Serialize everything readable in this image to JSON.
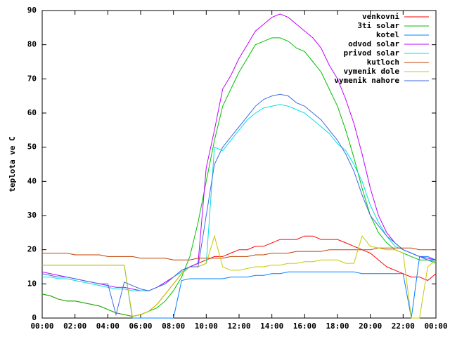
{
  "chart_data": {
    "type": "line",
    "y_label": "teplota ve C",
    "x": [
      0,
      0.5,
      1,
      1.5,
      2,
      2.5,
      3,
      3.5,
      4,
      4.5,
      5,
      5.5,
      6,
      6.5,
      7,
      7.5,
      8,
      8.5,
      9,
      9.5,
      10,
      10.5,
      11,
      11.5,
      12,
      12.5,
      13,
      13.5,
      14,
      14.5,
      15,
      15.5,
      16,
      16.5,
      17,
      17.5,
      18,
      18.5,
      19,
      19.5,
      20,
      20.5,
      21,
      21.5,
      22,
      22.5,
      23,
      23.5,
      24
    ],
    "xlim": [
      0,
      24
    ],
    "xticks": [
      {
        "value": 0,
        "label": "00:00"
      },
      {
        "value": 2,
        "label": "02:00"
      },
      {
        "value": 4,
        "label": "04:00"
      },
      {
        "value": 6,
        "label": "06:00"
      },
      {
        "value": 8,
        "label": "08:00"
      },
      {
        "value": 10,
        "label": "10:00"
      },
      {
        "value": 12,
        "label": "12:00"
      },
      {
        "value": 14,
        "label": "14:00"
      },
      {
        "value": 16,
        "label": "16:00"
      },
      {
        "value": 18,
        "label": "18:00"
      },
      {
        "value": 20,
        "label": "20:00"
      },
      {
        "value": 22,
        "label": "22:00"
      },
      {
        "value": 24,
        "label": "00:00"
      }
    ],
    "ylim": [
      0,
      90
    ],
    "yticks": [
      0,
      10,
      20,
      30,
      40,
      50,
      60,
      70,
      80,
      90
    ],
    "legend": "top-right",
    "series": [
      {
        "name": "venkovni",
        "color": "#ff0000",
        "values": [
          7,
          6.5,
          5.5,
          5,
          5,
          4.5,
          4,
          3.5,
          2.5,
          1.5,
          1,
          0.5,
          1,
          2,
          4,
          7,
          10,
          13,
          15,
          16,
          17,
          18,
          18,
          19,
          20,
          20,
          21,
          21,
          22,
          23,
          23,
          23,
          24,
          24,
          23,
          23,
          23,
          22,
          21,
          20,
          19,
          17,
          15,
          14,
          13,
          12,
          12,
          11,
          13
        ]
      },
      {
        "name": "3ti solar",
        "color": "#00c000",
        "values": [
          7,
          6.5,
          5.5,
          5,
          5,
          4.5,
          4,
          3.5,
          2.5,
          1.5,
          1,
          0.5,
          1,
          2,
          3,
          5,
          8,
          12,
          18,
          28,
          40,
          52,
          62,
          67,
          72,
          76,
          80,
          81,
          82,
          82,
          81,
          79,
          78,
          75,
          72,
          67,
          62,
          55,
          47,
          38,
          30,
          25,
          22,
          20,
          19,
          18,
          17,
          17,
          16
        ]
      },
      {
        "name": "kotel",
        "color": "#0080ff",
        "values": [
          15.5,
          15.5,
          15.5,
          15.5,
          15.5,
          15.5,
          15.5,
          15.5,
          15.5,
          15.5,
          15.5,
          0,
          0,
          0,
          0,
          0,
          0,
          11,
          11.5,
          11.5,
          11.5,
          11.5,
          11.5,
          12,
          12,
          12,
          12.5,
          12.5,
          13,
          13,
          13.5,
          13.5,
          13.5,
          13.5,
          13.5,
          13.5,
          13.5,
          13.5,
          13.5,
          13,
          13,
          13,
          13,
          13,
          13,
          0,
          18,
          18,
          17
        ]
      },
      {
        "name": "odvod solar",
        "color": "#c000ff",
        "values": [
          13.5,
          13,
          12.5,
          12,
          11.5,
          11,
          10.5,
          10,
          9.5,
          9,
          9,
          8.5,
          8,
          8,
          9,
          10.5,
          12,
          14,
          15,
          16,
          44,
          55,
          67,
          71,
          76,
          80,
          84,
          86,
          88,
          89,
          88,
          86,
          84,
          82,
          79,
          74,
          70,
          64,
          57,
          48,
          38,
          30,
          25,
          22,
          20,
          19,
          18,
          17.5,
          17
        ]
      },
      {
        "name": "privod solar",
        "color": "#00e0e0",
        "values": [
          12,
          12,
          11.5,
          11.5,
          11,
          10.5,
          10,
          9.5,
          9,
          8.5,
          8.5,
          8,
          8,
          8,
          9,
          10,
          12,
          13.5,
          15,
          15,
          16,
          50,
          49,
          52,
          55,
          58,
          60,
          61.5,
          62,
          62.5,
          62,
          61,
          60,
          58,
          56,
          54,
          51,
          49,
          45,
          40,
          33,
          28,
          24,
          21,
          20,
          19,
          18,
          17,
          16.5
        ]
      },
      {
        "name": "kutloch",
        "color": "#c04000",
        "values": [
          19,
          19,
          19,
          19,
          18.5,
          18.5,
          18.5,
          18.5,
          18,
          18,
          18,
          18,
          17.5,
          17.5,
          17.5,
          17.5,
          17,
          17,
          17,
          17.5,
          17.5,
          17.5,
          17.5,
          18,
          18,
          18,
          18.5,
          18.5,
          19,
          19,
          19,
          19.5,
          19.5,
          19.5,
          19.5,
          20,
          20,
          20,
          20,
          20,
          20,
          20.5,
          20.5,
          20.5,
          20.5,
          20.5,
          20,
          20,
          20
        ]
      },
      {
        "name": "vymenik dole",
        "color": "#c8c800",
        "values": [
          15.5,
          15.5,
          15.5,
          15.5,
          15.5,
          15.5,
          15.5,
          15.5,
          15.5,
          15.5,
          15.5,
          0.5,
          1,
          2,
          4,
          7,
          10,
          13,
          15,
          15,
          16,
          24,
          15,
          14,
          14,
          14.5,
          15,
          15,
          15.5,
          15.5,
          16,
          16,
          16.5,
          16.5,
          17,
          17,
          17,
          16,
          16,
          24,
          21,
          20.5,
          20,
          20,
          19,
          0,
          0,
          15,
          17
        ]
      },
      {
        "name": "vymenik nahore",
        "color": "#4169e1",
        "values": [
          13,
          12.5,
          12,
          12,
          11.5,
          11,
          10.5,
          10,
          10,
          1,
          10.5,
          9.5,
          8.5,
          8,
          9,
          10,
          12,
          14,
          15,
          15,
          30,
          45,
          50,
          53,
          56,
          59,
          62,
          64,
          65,
          65.5,
          65,
          63,
          62,
          60,
          58,
          55,
          52,
          48,
          43,
          36,
          30,
          27,
          24,
          22,
          20,
          19,
          18,
          17,
          17
        ]
      }
    ]
  }
}
